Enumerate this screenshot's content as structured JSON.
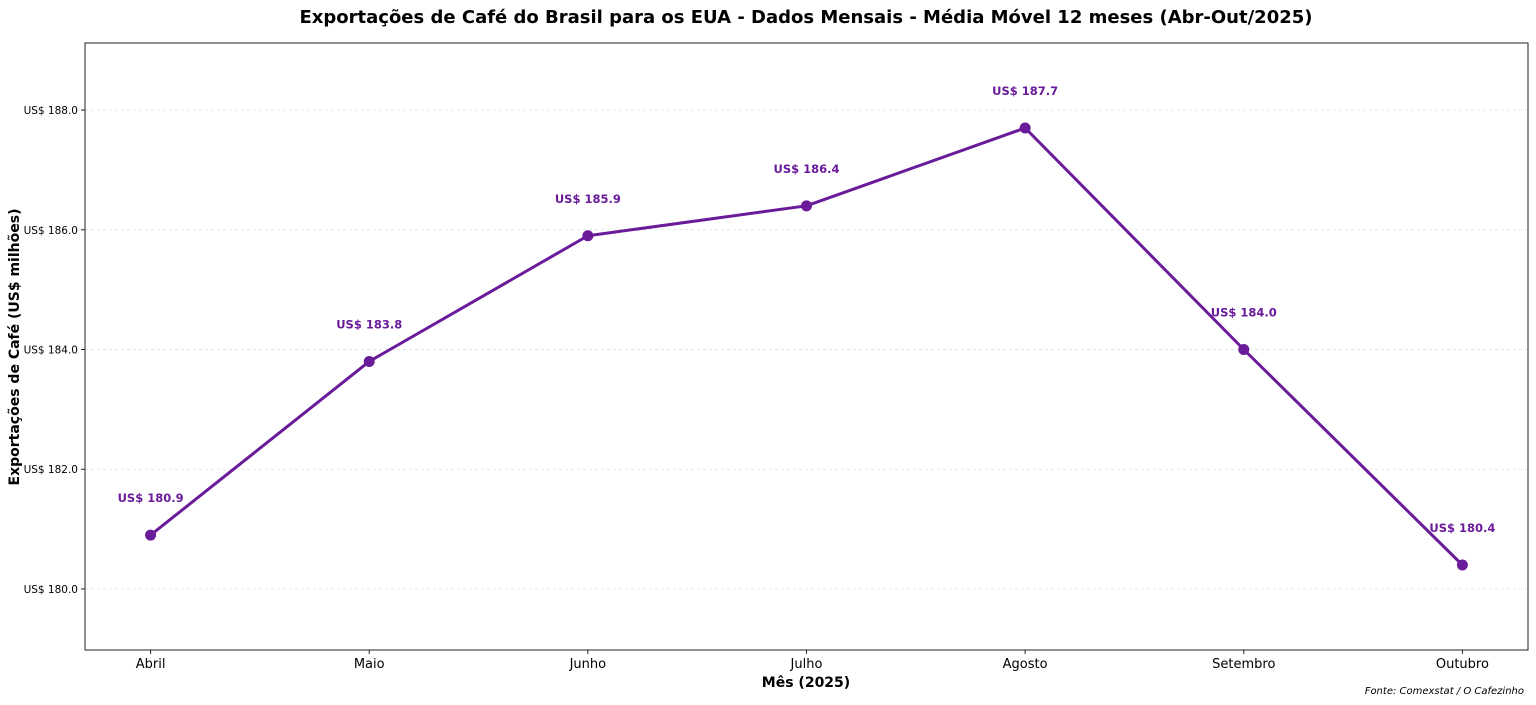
{
  "chart_data": {
    "type": "line",
    "title": "Exportações de Café do Brasil para os EUA - Dados Mensais - Média Móvel 12 meses (Abr-Out/2025)",
    "xlabel": "Mês (2025)",
    "ylabel": "Exportações de Café (US$ milhões)",
    "categories": [
      "Abril",
      "Maio",
      "Junho",
      "Julho",
      "Agosto",
      "Setembro",
      "Outubro"
    ],
    "values": [
      180.9,
      183.8,
      185.9,
      186.4,
      187.7,
      184.0,
      180.4
    ],
    "data_labels": [
      "US$ 180.9",
      "US$ 183.8",
      "US$ 185.9",
      "US$ 186.4",
      "US$ 187.7",
      "US$ 184.0",
      "US$ 180.4"
    ],
    "yticks": [
      180,
      182,
      184,
      186,
      188
    ],
    "ytick_labels": [
      "US$ 180.0",
      "US$ 182.0",
      "US$ 184.0",
      "US$ 186.0",
      "US$ 188.0"
    ],
    "ylim": [
      178.98,
      189.12
    ],
    "grid": true,
    "color": "#6a1b9a",
    "source": "Fonte: Comexstat / O Cafezinho"
  }
}
